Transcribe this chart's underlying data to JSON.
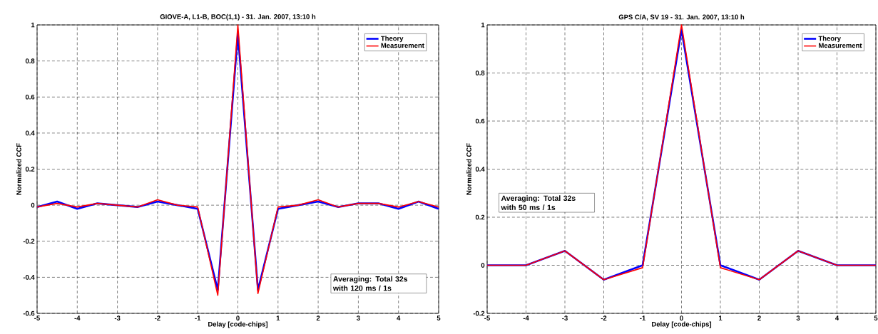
{
  "chart_data": [
    {
      "type": "line",
      "title": "GIOVE-A, L1-B, BOC(1,1)     -     31. Jan. 2007, 13:10 h",
      "xlabel": "Delay [code-chips]",
      "ylabel": "Normalized CCF",
      "x": [
        -5,
        -4.5,
        -4,
        -3.5,
        -3,
        -2.5,
        -2,
        -1.5,
        -1,
        -0.5,
        0,
        0.5,
        1,
        1.5,
        2,
        2.5,
        3,
        3.5,
        4,
        4.5,
        5
      ],
      "series": [
        {
          "name": "Theory",
          "color": "#0000ff",
          "values": [
            -0.01,
            0.02,
            -0.02,
            0.01,
            0,
            -0.01,
            0.02,
            0,
            -0.02,
            -0.47,
            0.95,
            -0.47,
            -0.02,
            0,
            0.02,
            -0.01,
            0.01,
            0.01,
            -0.02,
            0.02,
            -0.02
          ]
        },
        {
          "name": "Measurement",
          "color": "#ff0000",
          "values": [
            -0.01,
            0.01,
            -0.01,
            0.01,
            0,
            -0.01,
            0.03,
            0,
            -0.01,
            -0.5,
            1,
            -0.49,
            -0.01,
            0,
            0.03,
            -0.01,
            0.01,
            0.01,
            -0.01,
            0.02,
            -0.01
          ]
        }
      ],
      "xlim": [
        -5,
        5
      ],
      "ylim": [
        -0.6,
        1
      ],
      "xticks": [
        -5,
        -4,
        -3,
        -2,
        -1,
        0,
        1,
        2,
        3,
        4,
        5
      ],
      "yticks": [
        -0.6,
        -0.4,
        -0.2,
        0,
        0.2,
        0.4,
        0.6,
        0.8,
        1
      ],
      "grid": true,
      "legend": "top right",
      "annotations": [
        "Averaging: Total 32s\nwith 120 ms / 1s"
      ]
    },
    {
      "type": "line",
      "title": "GPS C/A, SV 19     -     31. Jan. 2007, 13:10 h",
      "xlabel": "Delay [code-chips]",
      "ylabel": "Normalized CCF",
      "x": [
        -5,
        -4,
        -3,
        -2,
        -1,
        0,
        1,
        2,
        3,
        4,
        5
      ],
      "series": [
        {
          "name": "Theory",
          "color": "#0000ff",
          "values": [
            0,
            0,
            0.06,
            -0.06,
            0,
            0.98,
            0,
            -0.06,
            0.06,
            0,
            0
          ]
        },
        {
          "name": "Measurement",
          "color": "#ff0000",
          "values": [
            0,
            0,
            0.06,
            -0.06,
            -0.01,
            1,
            -0.01,
            -0.06,
            0.06,
            0,
            0
          ]
        }
      ],
      "xlim": [
        -5,
        5
      ],
      "ylim": [
        -0.2,
        1
      ],
      "xticks": [
        -5,
        -4,
        -3,
        -2,
        -1,
        0,
        1,
        2,
        3,
        4,
        5
      ],
      "yticks": [
        -0.2,
        0,
        0.2,
        0.4,
        0.6,
        0.8,
        1
      ],
      "grid": true,
      "legend": "top right",
      "annotations": [
        "Averaging: Total 32s\nwith 50 ms / 1s"
      ]
    }
  ]
}
